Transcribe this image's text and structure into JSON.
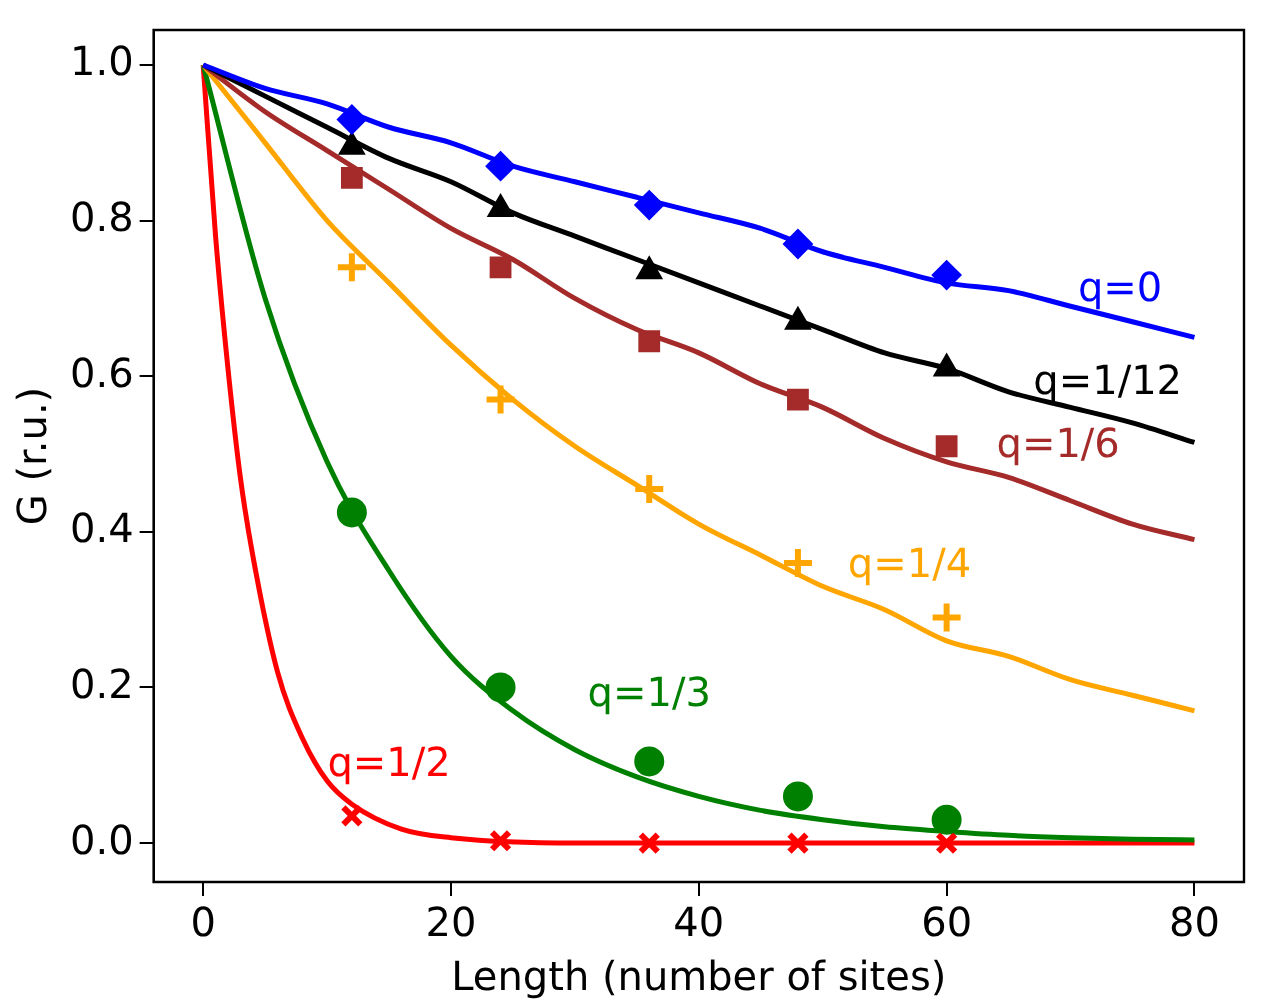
{
  "chart_data": {
    "type": "line",
    "xlabel": "Length (number of sites)",
    "ylabel": "G (r.u.)",
    "xlim": [
      -4,
      84
    ],
    "ylim": [
      -0.05,
      1.045
    ],
    "xticks": [
      0,
      20,
      40,
      60,
      80
    ],
    "yticks": [
      {
        "value": 0,
        "label": "0.0"
      },
      {
        "value": 0.2,
        "label": "0.2"
      },
      {
        "value": 0.4,
        "label": "0.4"
      },
      {
        "value": 0.6,
        "label": "0.6"
      },
      {
        "value": 0.8,
        "label": "0.8"
      },
      {
        "value": 1,
        "label": "1.0"
      }
    ],
    "grid": false,
    "legend": false,
    "line_style": "solid",
    "series": [
      {
        "name": "q=0",
        "color": "#0000ff",
        "marker": "none",
        "x": [
          0,
          5,
          10,
          15,
          20,
          25,
          30,
          35,
          40,
          45,
          50,
          55,
          60,
          65,
          70,
          75,
          80
        ],
        "values": [
          1,
          0.97,
          0.95,
          0.92,
          0.9,
          0.87,
          0.85,
          0.83,
          0.81,
          0.79,
          0.76,
          0.74,
          0.72,
          0.71,
          0.69,
          0.67,
          0.65
        ]
      },
      {
        "name": "q=1/12",
        "color": "#000000",
        "marker": "none",
        "x": [
          0,
          5,
          10,
          15,
          20,
          25,
          30,
          35,
          40,
          45,
          50,
          55,
          60,
          65,
          70,
          75,
          80
        ],
        "values": [
          1,
          0.96,
          0.92,
          0.88,
          0.85,
          0.81,
          0.78,
          0.75,
          0.72,
          0.69,
          0.66,
          0.63,
          0.61,
          0.58,
          0.56,
          0.54,
          0.515
        ]
      },
      {
        "name": "q=1/6",
        "color": "#a52a2a",
        "marker": "none",
        "x": [
          0,
          5,
          10,
          15,
          20,
          25,
          30,
          35,
          40,
          45,
          50,
          55,
          60,
          65,
          70,
          75,
          80
        ],
        "values": [
          1,
          0.94,
          0.89,
          0.84,
          0.79,
          0.75,
          0.7,
          0.66,
          0.63,
          0.59,
          0.56,
          0.52,
          0.49,
          0.47,
          0.44,
          0.41,
          0.39
        ]
      },
      {
        "name": "q=1/4",
        "color": "#ffa500",
        "marker": "none",
        "x": [
          0,
          5,
          10,
          15,
          20,
          25,
          30,
          35,
          40,
          45,
          50,
          55,
          60,
          65,
          70,
          75,
          80
        ],
        "values": [
          1,
          0.9,
          0.8,
          0.72,
          0.64,
          0.57,
          0.51,
          0.46,
          0.41,
          0.37,
          0.33,
          0.3,
          0.26,
          0.24,
          0.21,
          0.19,
          0.17
        ]
      },
      {
        "name": "q=1/3",
        "color": "#008000",
        "marker": "none",
        "x": [
          0,
          5,
          10,
          15,
          20,
          25,
          30,
          35,
          40,
          45,
          50,
          55,
          60,
          65,
          70,
          75,
          80
        ],
        "values": [
          1,
          0.7,
          0.49,
          0.35,
          0.24,
          0.17,
          0.12,
          0.085,
          0.06,
          0.042,
          0.03,
          0.021,
          0.015,
          0.01,
          0.007,
          0.005,
          0.004
        ]
      },
      {
        "name": "q=1/2",
        "color": "#ff0000",
        "marker": "none",
        "x": [
          0,
          1,
          2,
          3,
          4,
          6,
          8,
          10,
          12,
          16,
          20,
          30,
          80
        ],
        "values": [
          1,
          0.78,
          0.61,
          0.47,
          0.37,
          0.22,
          0.135,
          0.08,
          0.05,
          0.018,
          0.007,
          0,
          0
        ]
      },
      {
        "type": "scatter",
        "color": "#0000ff",
        "marker": "diamond",
        "x": [
          12,
          24,
          36,
          48,
          60
        ],
        "values": [
          0.93,
          0.87,
          0.82,
          0.77,
          0.73
        ]
      },
      {
        "type": "scatter",
        "color": "#000000",
        "marker": "triangle",
        "x": [
          12,
          24,
          36,
          48,
          60
        ],
        "values": [
          0.895,
          0.815,
          0.735,
          0.67,
          0.61
        ]
      },
      {
        "type": "scatter",
        "color": "#a52a2a",
        "marker": "square",
        "x": [
          12,
          24,
          36,
          48,
          60
        ],
        "values": [
          0.855,
          0.74,
          0.645,
          0.57,
          0.51
        ]
      },
      {
        "type": "scatter",
        "color": "#ffa500",
        "marker": "cross",
        "x": [
          12,
          24,
          36,
          48,
          60
        ],
        "values": [
          0.74,
          0.57,
          0.455,
          0.36,
          0.29
        ]
      },
      {
        "type": "scatter",
        "color": "#008000",
        "marker": "circle",
        "x": [
          12,
          24,
          36,
          48,
          60
        ],
        "values": [
          0.425,
          0.2,
          0.105,
          0.06,
          0.03
        ]
      },
      {
        "type": "scatter",
        "color": "#ff0000",
        "marker": "x",
        "x": [
          12,
          24,
          36,
          48,
          60
        ],
        "values": [
          0.035,
          0.003,
          0,
          0,
          0
        ]
      }
    ]
  }
}
